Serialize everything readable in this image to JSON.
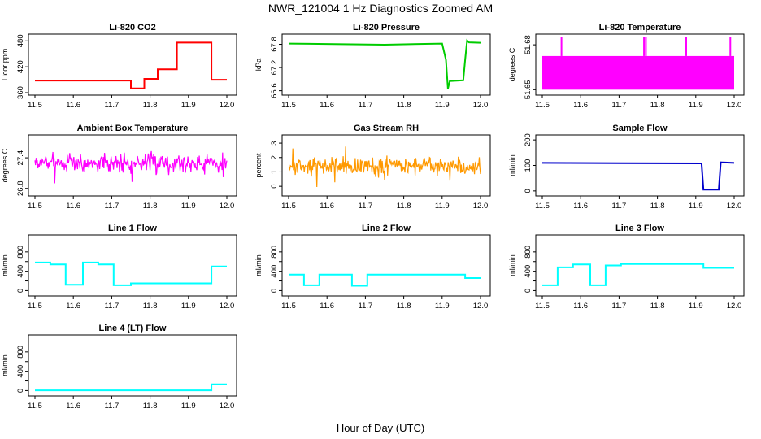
{
  "figure": {
    "title": "NWR_121004  1 Hz Diagnostics Zoomed AM",
    "xlabel": "Hour of Day (UTC)"
  },
  "chart_data": [
    {
      "type": "line",
      "title": "Li-820 CO2",
      "ylabel": "Licor ppm",
      "color": "#ff0000",
      "xlim": [
        11.5,
        12.0
      ],
      "ylim": [
        360,
        490
      ],
      "xticks": [
        11.5,
        11.6,
        11.7,
        11.8,
        11.9,
        12.0
      ],
      "xtick_labels": [
        "11.5",
        "11.6",
        "11.7",
        "11.8",
        "11.9",
        "12.0"
      ],
      "yticks": [
        360,
        420,
        480
      ],
      "ytick_labels": [
        "360",
        "420",
        "480"
      ],
      "series": [
        {
          "x": [
            11.5,
            11.75,
            11.75,
            11.785,
            11.785,
            11.82,
            11.82,
            11.87,
            11.87,
            11.96,
            11.96,
            12.0
          ],
          "y": [
            388,
            388,
            370,
            370,
            392,
            392,
            414,
            414,
            476,
            476,
            390,
            390
          ]
        }
      ]
    },
    {
      "type": "line",
      "title": "Li-820 Pressure",
      "ylabel": "kPa",
      "color": "#00cc00",
      "xlim": [
        11.5,
        12.0
      ],
      "ylim": [
        66.55,
        68.0
      ],
      "xticks": [
        11.5,
        11.6,
        11.7,
        11.8,
        11.9,
        12.0
      ],
      "xtick_labels": [
        "11.5",
        "11.6",
        "11.7",
        "11.8",
        "11.9",
        "12.0"
      ],
      "yticks": [
        66.6,
        67.2,
        67.8
      ],
      "ytick_labels": [
        "66.6",
        "67.2",
        "67.8"
      ],
      "series": [
        {
          "x": [
            11.5,
            11.75,
            11.9,
            11.91,
            11.915,
            11.92,
            11.955,
            11.96,
            11.965,
            11.97,
            12.0
          ],
          "y": [
            67.82,
            67.79,
            67.82,
            67.4,
            66.65,
            66.85,
            66.87,
            67.4,
            67.9,
            67.85,
            67.84
          ]
        }
      ]
    },
    {
      "type": "line",
      "title": "Li-820 Temperature",
      "ylabel": "degrees C",
      "color": "#ff00ff",
      "xlim": [
        11.5,
        12.0
      ],
      "ylim": [
        51.648,
        51.6855
      ],
      "xticks": [
        11.5,
        11.6,
        11.7,
        11.8,
        11.9,
        12.0
      ],
      "xtick_labels": [
        "11.5",
        "11.6",
        "11.7",
        "11.8",
        "11.9",
        "12.0"
      ],
      "yticks": [
        51.65,
        51.68
      ],
      "ytick_labels": [
        "51.65",
        "51.68"
      ],
      "band": {
        "low": 51.65,
        "high": 51.6725
      },
      "spikes": [
        11.55,
        11.765,
        11.77,
        11.875,
        11.99
      ],
      "spike_top": 51.6855,
      "series": []
    },
    {
      "type": "line",
      "title": "Ambient Box Temperature",
      "ylabel": "degrees C",
      "color": "#ff00ff",
      "xlim": [
        11.5,
        12.0
      ],
      "ylim": [
        26.7,
        27.8
      ],
      "xticks": [
        11.5,
        11.6,
        11.7,
        11.8,
        11.9,
        12.0
      ],
      "xtick_labels": [
        "11.5",
        "11.6",
        "11.7",
        "11.8",
        "11.9",
        "12.0"
      ],
      "yticks": [
        26.8,
        27.4
      ],
      "ytick_labels": [
        "26.8",
        "27.4"
      ],
      "noise": {
        "center": 27.3,
        "amp": 0.28,
        "seed": 7
      },
      "series": []
    },
    {
      "type": "line",
      "title": "Gas Stream RH",
      "ylabel": "percent",
      "color": "#ff9900",
      "xlim": [
        11.5,
        12.0
      ],
      "ylim": [
        -0.5,
        3.4
      ],
      "xticks": [
        11.5,
        11.6,
        11.7,
        11.8,
        11.9,
        12.0
      ],
      "xtick_labels": [
        "11.5",
        "11.6",
        "11.7",
        "11.8",
        "11.9",
        "12.0"
      ],
      "yticks": [
        0,
        1,
        2,
        3
      ],
      "ytick_labels": [
        "0",
        "1",
        "2",
        "3"
      ],
      "noise": {
        "center": 1.4,
        "amp": 0.9,
        "seed": 13
      },
      "series": []
    },
    {
      "type": "line",
      "title": "Sample Flow",
      "ylabel": "ml/min",
      "color": "#0000cc",
      "xlim": [
        11.5,
        12.0
      ],
      "ylim": [
        -10,
        210
      ],
      "xticks": [
        11.5,
        11.6,
        11.7,
        11.8,
        11.9,
        12.0
      ],
      "xtick_labels": [
        "11.5",
        "11.6",
        "11.7",
        "11.8",
        "11.9",
        "12.0"
      ],
      "yticks": [
        0,
        100,
        200
      ],
      "ytick_labels": [
        "0",
        "100",
        "200"
      ],
      "series": [
        {
          "x": [
            11.5,
            11.915,
            11.92,
            11.96,
            11.965,
            12.0
          ],
          "y": [
            110,
            108,
            5,
            5,
            112,
            110
          ]
        }
      ]
    },
    {
      "type": "line",
      "title": "Line 1 Flow",
      "ylabel": "ml/min",
      "color": "#00ffff",
      "xlim": [
        11.5,
        12.0
      ],
      "ylim": [
        -60,
        1100
      ],
      "xticks": [
        11.5,
        11.6,
        11.7,
        11.8,
        11.9,
        12.0
      ],
      "xtick_labels": [
        "11.5",
        "11.6",
        "11.7",
        "11.8",
        "11.9",
        "12.0"
      ],
      "yticks": [
        0,
        200,
        400,
        600,
        800
      ],
      "ytick_labels": [
        "0",
        "400",
        "800"
      ],
      "series": [
        {
          "x": [
            11.5,
            11.54,
            11.54,
            11.58,
            11.58,
            11.625,
            11.625,
            11.665,
            11.665,
            11.705,
            11.705,
            11.75,
            11.75,
            11.96,
            11.96,
            12.0
          ],
          "y": [
            580,
            580,
            540,
            540,
            120,
            120,
            580,
            580,
            540,
            540,
            110,
            110,
            150,
            150,
            500,
            500
          ]
        }
      ]
    },
    {
      "type": "line",
      "title": "Line 2 Flow",
      "ylabel": "ml/min",
      "color": "#00ffff",
      "xlim": [
        11.5,
        12.0
      ],
      "ylim": [
        -60,
        1100
      ],
      "xticks": [
        11.5,
        11.6,
        11.7,
        11.8,
        11.9,
        12.0
      ],
      "xtick_labels": [
        "11.5",
        "11.6",
        "11.7",
        "11.8",
        "11.9",
        "12.0"
      ],
      "yticks": [
        0,
        200,
        400,
        600,
        800
      ],
      "ytick_labels": [
        "0",
        "400",
        "800"
      ],
      "series": [
        {
          "x": [
            11.5,
            11.54,
            11.54,
            11.58,
            11.58,
            11.665,
            11.665,
            11.705,
            11.705,
            11.96,
            11.96,
            12.0
          ],
          "y": [
            330,
            330,
            110,
            110,
            330,
            330,
            100,
            100,
            330,
            330,
            260,
            260
          ]
        }
      ]
    },
    {
      "type": "line",
      "title": "Line 3 Flow",
      "ylabel": "ml/min",
      "color": "#00ffff",
      "xlim": [
        11.5,
        12.0
      ],
      "ylim": [
        -60,
        1100
      ],
      "xticks": [
        11.5,
        11.6,
        11.7,
        11.8,
        11.9,
        12.0
      ],
      "xtick_labels": [
        "11.5",
        "11.6",
        "11.7",
        "11.8",
        "11.9",
        "12.0"
      ],
      "yticks": [
        0,
        200,
        400,
        600,
        800
      ],
      "ytick_labels": [
        "0",
        "400",
        "800"
      ],
      "series": [
        {
          "x": [
            11.5,
            11.54,
            11.54,
            11.58,
            11.58,
            11.625,
            11.625,
            11.665,
            11.665,
            11.705,
            11.705,
            11.92,
            11.92,
            12.0
          ],
          "y": [
            110,
            110,
            480,
            480,
            540,
            540,
            110,
            110,
            520,
            520,
            550,
            550,
            470,
            470
          ]
        }
      ]
    },
    {
      "type": "line",
      "title": "Line 4 (LT) Flow",
      "ylabel": "ml/min",
      "color": "#00ffff",
      "xlim": [
        11.5,
        12.0
      ],
      "ylim": [
        -60,
        1100
      ],
      "xticks": [
        11.5,
        11.6,
        11.7,
        11.8,
        11.9,
        12.0
      ],
      "xtick_labels": [
        "11.5",
        "11.6",
        "11.7",
        "11.8",
        "11.9",
        "12.0"
      ],
      "yticks": [
        0,
        200,
        400,
        600,
        800
      ],
      "ytick_labels": [
        "0",
        "400",
        "800"
      ],
      "series": [
        {
          "x": [
            11.5,
            11.96,
            11.96,
            12.0
          ],
          "y": [
            5,
            5,
            130,
            130
          ]
        }
      ]
    }
  ]
}
